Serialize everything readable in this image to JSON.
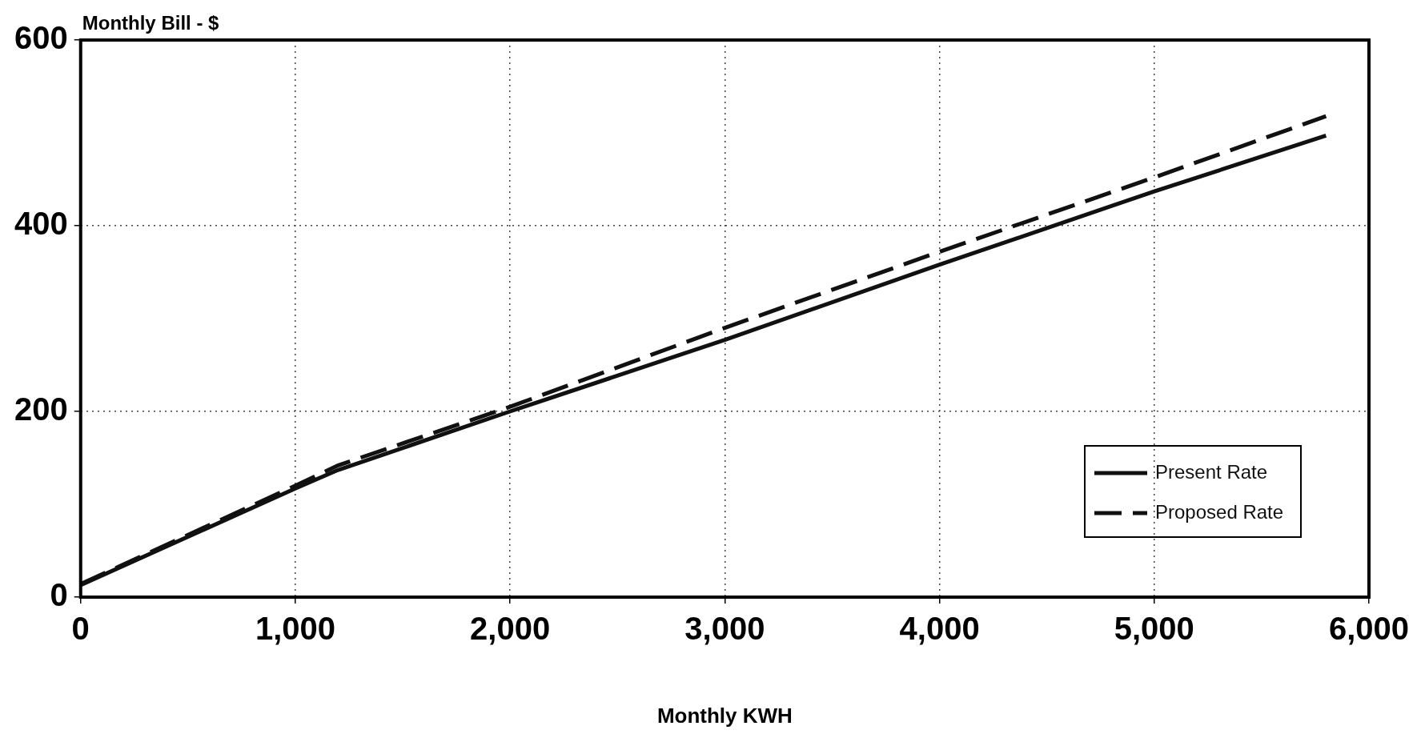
{
  "chart_data": {
    "type": "line",
    "xlabel": "Monthly KWH",
    "ylabel": "Monthly Bill - $",
    "x": [
      0,
      1000,
      1200,
      2000,
      3000,
      4000,
      5000,
      5800
    ],
    "series": [
      {
        "name": "Present Rate",
        "color": "#111111",
        "line_style": "solid",
        "values": [
          13,
          117,
          137,
          200,
          277,
          358,
          437,
          497
        ]
      },
      {
        "name": "Proposed Rate",
        "color": "#111111",
        "line_style": "dashed",
        "values": [
          14,
          120,
          142,
          205,
          290,
          372,
          452,
          518
        ]
      }
    ],
    "xlim": [
      0,
      6000
    ],
    "xticks": [
      0,
      {
        "value": 1000,
        "label": "1,000"
      },
      {
        "value": 2000,
        "label": "2,000"
      },
      {
        "value": 3000,
        "label": "3,000"
      },
      {
        "value": 4000,
        "label": "4,000"
      },
      {
        "value": 5000,
        "label": "5,000"
      },
      {
        "value": 6000,
        "label": "6,000"
      }
    ],
    "ylim": [
      0,
      600
    ],
    "yticks": [
      0,
      200,
      400,
      600
    ],
    "grid": true,
    "legend": "bottom right",
    "marker": "none"
  }
}
